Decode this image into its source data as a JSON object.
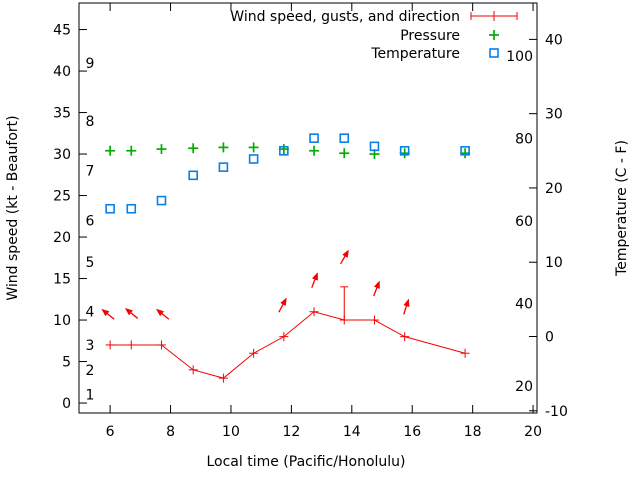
{
  "colors": {
    "wind": "#f20202",
    "pressure": "#00ad00",
    "temperature": "#0880e8",
    "axis": "#000000",
    "background": "#ffffff"
  },
  "chart_data": {
    "type": "line",
    "title": "",
    "xlabel": "Local time (Pacific/Honolulu)",
    "grid": false,
    "x_ticks": [
      6,
      8,
      10,
      12,
      14,
      16,
      18,
      20
    ],
    "x_range": [
      4.97,
      20.13
    ],
    "axes": {
      "left": {
        "label": "Wind speed (kt - Beaufort)",
        "ticks": [
          0,
          5,
          10,
          15,
          20,
          25,
          30,
          35,
          40,
          45
        ],
        "range": [
          -1.2,
          48.2
        ],
        "inner_scale": {
          "name": "Beaufort",
          "labels": [
            {
              "text": "1",
              "kt": 1
            },
            {
              "text": "2",
              "kt": 4
            },
            {
              "text": "3",
              "kt": 7
            },
            {
              "text": "4",
              "kt": 11
            },
            {
              "text": "5",
              "kt": 17
            },
            {
              "text": "6",
              "kt": 22
            },
            {
              "text": "7",
              "kt": 28
            },
            {
              "text": "8",
              "kt": 34
            },
            {
              "text": "9",
              "kt": 41
            }
          ]
        }
      },
      "right": {
        "label": "Temperature (C - F)",
        "ticks": [
          -10,
          0,
          10,
          20,
          30,
          40
        ],
        "range": [
          -10.3,
          44.9
        ],
        "inner_scale": {
          "name": "Fahrenheit",
          "labels": [
            {
              "text": "20",
              "f": 20
            },
            {
              "text": "40",
              "f": 40
            },
            {
              "text": "60",
              "f": 60
            },
            {
              "text": "80",
              "f": 80
            },
            {
              "text": "100",
              "f": 100
            }
          ]
        }
      }
    },
    "x": [
      6.0,
      6.7,
      7.7,
      8.75,
      9.75,
      10.75,
      11.75,
      12.75,
      13.75,
      14.75,
      15.75,
      17.75
    ],
    "series": [
      {
        "name": "Wind speed, gusts, and direction",
        "marker": "plus-errorbar",
        "color_key": "wind",
        "axis": "left",
        "values": [
          7,
          7,
          7,
          4,
          3,
          6,
          8,
          11,
          10,
          10,
          8,
          6
        ],
        "gusts": [
          null,
          null,
          null,
          null,
          null,
          null,
          null,
          null,
          14,
          null,
          null,
          null
        ]
      },
      {
        "name": "Pressure",
        "marker": "plus",
        "color_key": "pressure",
        "axis": "left",
        "values": [
          30.4,
          30.4,
          30.6,
          30.7,
          30.8,
          30.8,
          30.6,
          30.4,
          30.1,
          30.0,
          30.1,
          30.1
        ]
      },
      {
        "name": "Temperature",
        "marker": "open-square",
        "color_key": "temperature",
        "axis": "right",
        "values_c": [
          17.2,
          17.2,
          18.3,
          21.7,
          22.8,
          23.9,
          25.0,
          26.7,
          26.7,
          25.6,
          25.0,
          25.0
        ],
        "values_f": [
          63,
          63,
          65,
          71,
          73,
          75,
          77,
          80,
          80,
          78,
          77,
          77
        ]
      }
    ],
    "wind_direction_arrows": [
      {
        "t": 5.93,
        "kt": 10.7,
        "angle_deg": 141
      },
      {
        "t": 6.71,
        "kt": 10.8,
        "angle_deg": 141
      },
      {
        "t": 7.74,
        "kt": 10.7,
        "angle_deg": 141
      },
      {
        "t": 11.71,
        "kt": 11.8,
        "angle_deg": 62
      },
      {
        "t": 12.77,
        "kt": 14.8,
        "angle_deg": 69
      },
      {
        "t": 13.76,
        "kt": 17.6,
        "angle_deg": 60
      },
      {
        "t": 14.82,
        "kt": 13.8,
        "angle_deg": 69
      },
      {
        "t": 15.8,
        "kt": 11.6,
        "angle_deg": 72
      }
    ],
    "legend": {
      "position": "top-right-inside",
      "entries": [
        "Wind speed, gusts, and direction",
        "Pressure",
        "Temperature"
      ]
    }
  }
}
